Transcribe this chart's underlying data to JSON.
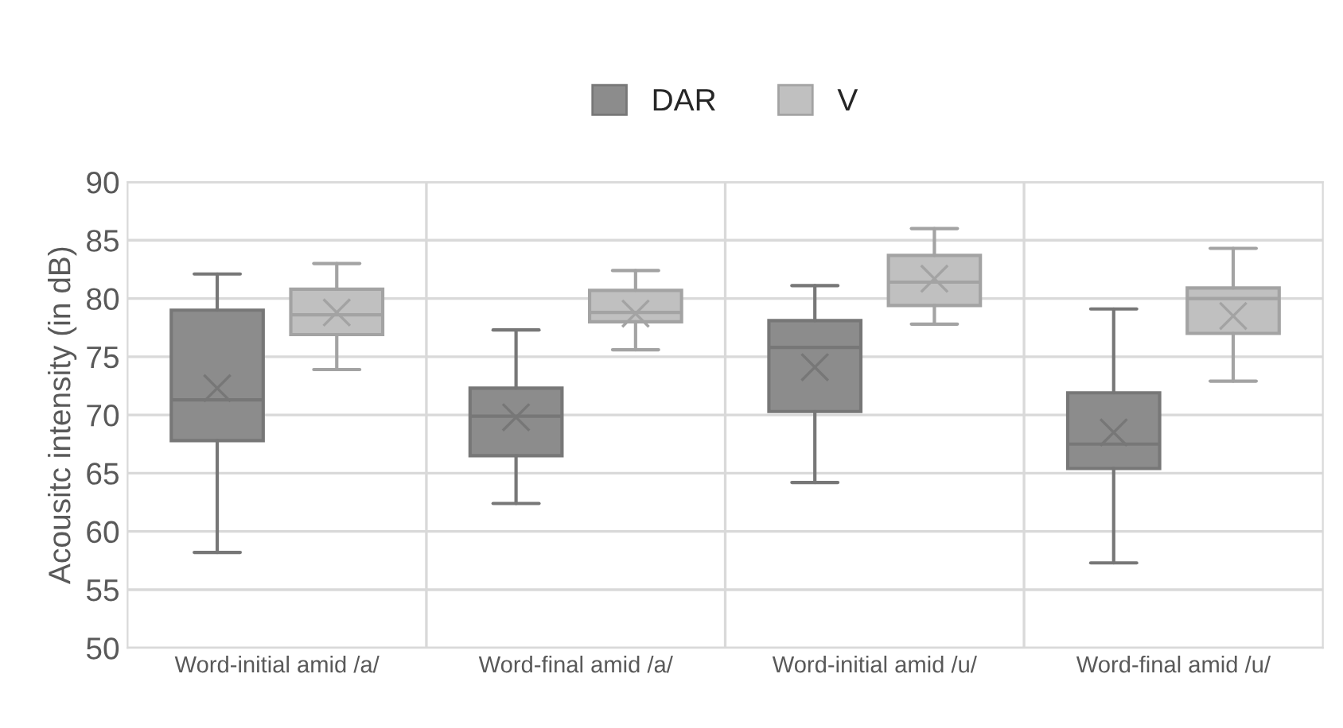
{
  "chart_data": {
    "type": "box",
    "ylabel": "Acousitc intensity (in dB)",
    "categories": [
      "Word-initial amid /a/",
      "Word-final amid /a/",
      "Word-initial amid /u/",
      "Word-final amid /u/"
    ],
    "ylim": [
      50,
      90
    ],
    "yticks": [
      50,
      55,
      60,
      65,
      70,
      75,
      80,
      85,
      90
    ],
    "grid": true,
    "legend": "top",
    "series": [
      {
        "name": "DAR",
        "color": "#8c8c8c",
        "boxes": [
          {
            "low": 58.2,
            "q1": 67.8,
            "median": 71.3,
            "q3": 79.0,
            "high": 82.1,
            "mean": 72.3
          },
          {
            "low": 62.4,
            "q1": 66.5,
            "median": 69.9,
            "q3": 72.3,
            "high": 77.3,
            "mean": 69.8
          },
          {
            "low": 64.2,
            "q1": 70.3,
            "median": 75.8,
            "q3": 78.1,
            "high": 81.1,
            "mean": 74.1
          },
          {
            "low": 57.3,
            "q1": 65.4,
            "median": 67.5,
            "q3": 71.9,
            "high": 79.1,
            "mean": 68.5
          }
        ]
      },
      {
        "name": "V",
        "color": "#c0c0c0",
        "boxes": [
          {
            "low": 73.9,
            "q1": 76.9,
            "median": 78.6,
            "q3": 80.8,
            "high": 83.0,
            "mean": 78.8
          },
          {
            "low": 75.6,
            "q1": 78.0,
            "median": 78.8,
            "q3": 80.7,
            "high": 82.4,
            "mean": 78.7
          },
          {
            "low": 77.8,
            "q1": 79.4,
            "median": 81.4,
            "q3": 83.7,
            "high": 86.0,
            "mean": 81.7
          },
          {
            "low": 72.9,
            "q1": 77.0,
            "median": 80.0,
            "q3": 80.9,
            "high": 84.3,
            "mean": 78.5
          }
        ]
      }
    ]
  }
}
